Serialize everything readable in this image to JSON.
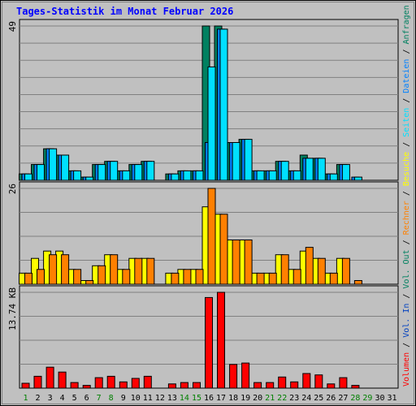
{
  "chart_data": {
    "type": "bar",
    "title": "Tages-Statistik im Monat Februar 2026",
    "days": [
      "1",
      "2",
      "3",
      "4",
      "5",
      "6",
      "7",
      "8",
      "9",
      "10",
      "11",
      "12",
      "13",
      "14",
      "15",
      "16",
      "17",
      "18",
      "19",
      "20",
      "21",
      "22",
      "23",
      "24",
      "25",
      "26",
      "27",
      "28",
      "29",
      "30",
      "31"
    ],
    "weekend_days": [
      "1",
      "7",
      "8",
      "14",
      "15",
      "21",
      "22",
      "28",
      "29"
    ],
    "panels": [
      {
        "id": "top",
        "ymax_label": "49",
        "ymax": 49,
        "series": [
          {
            "name": "Anfragen",
            "color": "#008060",
            "values": [
              2,
              5,
              10,
              8,
              3,
              1,
              5,
              6,
              3,
              5,
              6,
              null,
              2,
              3,
              3,
              49,
              49,
              12,
              13,
              3,
              3,
              6,
              3,
              8,
              7,
              2,
              5,
              null,
              null,
              null,
              null
            ]
          },
          {
            "name": "Dateien",
            "color": "#0080ff",
            "values": [
              2,
              5,
              10,
              8,
              3,
              1,
              5,
              6,
              3,
              5,
              6,
              null,
              2,
              3,
              3,
              12,
              48,
              12,
              13,
              3,
              3,
              6,
              3,
              7,
              7,
              2,
              5,
              1,
              null,
              null,
              null
            ]
          },
          {
            "name": "Seiten",
            "color": "#00e0ff",
            "values": [
              2,
              5,
              10,
              8,
              3,
              1,
              5,
              6,
              3,
              5,
              6,
              null,
              2,
              3,
              3,
              36,
              48,
              12,
              13,
              3,
              3,
              6,
              3,
              7,
              7,
              2,
              5,
              1,
              null,
              null,
              null
            ]
          }
        ]
      },
      {
        "id": "middle",
        "ymax_label": "26",
        "ymax": 26,
        "series": [
          {
            "name": "Besuche",
            "color": "#ffff00",
            "values": [
              3,
              7,
              9,
              9,
              4,
              1,
              5,
              8,
              4,
              7,
              7,
              null,
              3,
              4,
              4,
              21,
              19,
              12,
              12,
              3,
              3,
              8,
              4,
              9,
              7,
              3,
              7,
              null,
              null,
              null,
              null
            ]
          },
          {
            "name": "Rechner",
            "color": "#ff8000",
            "values": [
              3,
              4,
              8,
              8,
              4,
              1,
              5,
              8,
              4,
              7,
              7,
              null,
              3,
              4,
              4,
              26,
              19,
              12,
              12,
              3,
              3,
              8,
              4,
              10,
              7,
              3,
              7,
              1,
              null,
              null,
              null
            ]
          }
        ]
      },
      {
        "id": "bottom",
        "ymax_label": "13.74 KB",
        "ymax": 13.74,
        "series": [
          {
            "name": "Volumen",
            "color": "#ff0000",
            "values": [
              0.7,
              1.7,
              3.0,
              2.3,
              0.8,
              0.4,
              1.5,
              1.7,
              0.9,
              1.4,
              1.7,
              null,
              0.6,
              0.8,
              0.8,
              13.0,
              13.74,
              3.4,
              3.6,
              0.8,
              0.8,
              1.6,
              0.9,
              2.1,
              1.9,
              0.6,
              1.5,
              0.4,
              null,
              null,
              null
            ]
          }
        ]
      }
    ],
    "legend": [
      {
        "label": "Volumen",
        "color": "#ff0000"
      },
      {
        "label": "Vol. In",
        "color": "#0040c0"
      },
      {
        "label": "Vol. Out",
        "color": "#008060"
      },
      {
        "label": "Rechner",
        "color": "#ff8000"
      },
      {
        "label": "Besuche",
        "color": "#ffff00"
      },
      {
        "label": "Seiten",
        "color": "#00e0ff"
      },
      {
        "label": "Dateien",
        "color": "#0080ff"
      },
      {
        "label": "Anfragen",
        "color": "#008060"
      }
    ],
    "legend_separator": " / ",
    "colors": {
      "background": "#c0c0c0",
      "title": "#0000ff",
      "weekday_label": "#000000",
      "weekend_label": "#008000",
      "gridline": "#808080",
      "axis_label": "#000000"
    }
  }
}
